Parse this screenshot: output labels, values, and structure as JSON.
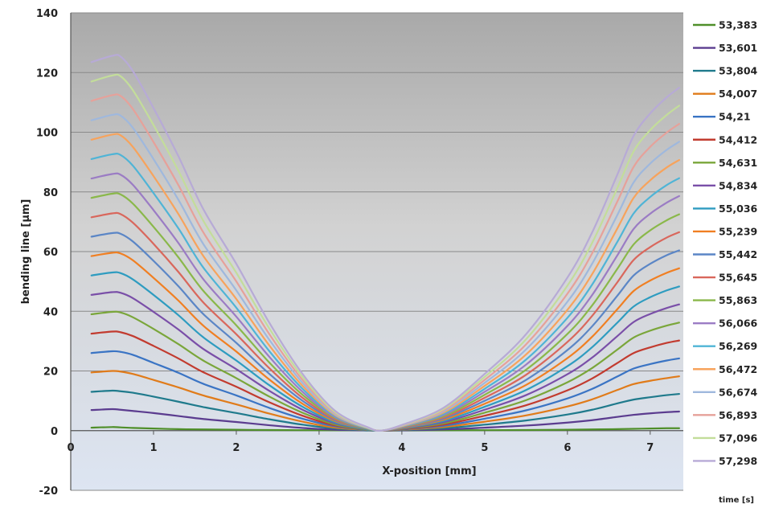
{
  "chart_data": {
    "type": "line",
    "xlabel": "X-position [mm]",
    "ylabel": "bending line [µm]",
    "legend_title": "time [s]",
    "legend_position": "right",
    "xlim": [
      0,
      7.4
    ],
    "ylim": [
      -20,
      140
    ],
    "x_ticks": [
      "0",
      "1",
      "2",
      "3",
      "4",
      "5",
      "6",
      "7"
    ],
    "y_ticks": [
      "-20",
      "0",
      "20",
      "40",
      "60",
      "80",
      "100",
      "120",
      "140"
    ],
    "grid": "horizontal",
    "background": "vertical gradient from dark gray (top) to light blue (bottom)",
    "profile_note": "Each curve is flat near the left end, descends to 0 at X≈3.75 mm, then rises toward the right end.",
    "x": [
      0.25,
      0.5,
      0.6,
      0.75,
      1.0,
      1.3,
      1.6,
      2.0,
      2.4,
      2.8,
      3.2,
      3.6,
      3.75,
      4.0,
      4.5,
      5.0,
      5.5,
      6.0,
      6.3,
      6.6,
      6.8,
      7.0,
      7.2,
      7.35
    ],
    "series": [
      {
        "name": "53,383",
        "color": "#4f8f2a",
        "values": [
          1.0,
          1.2,
          1.1,
          0.9,
          0.7,
          0.5,
          0.4,
          0.3,
          0.2,
          0.15,
          0.1,
          0.05,
          0,
          0.05,
          0.1,
          0.15,
          0.2,
          0.3,
          0.4,
          0.5,
          0.6,
          0.7,
          0.8,
          0.8
        ]
      },
      {
        "name": "53,601",
        "color": "#5b3c8f",
        "values": [
          6.9,
          7.2,
          7.0,
          6.6,
          5.9,
          4.9,
          3.9,
          2.9,
          1.8,
          0.9,
          0.3,
          0.05,
          0,
          0.1,
          0.4,
          1.0,
          1.7,
          2.7,
          3.5,
          4.6,
          5.3,
          5.8,
          6.2,
          6.4
        ]
      },
      {
        "name": "53,804",
        "color": "#1f7a8c",
        "values": [
          13.0,
          13.4,
          13.2,
          12.7,
          11.4,
          9.7,
          7.9,
          5.9,
          3.8,
          2.0,
          0.7,
          0.1,
          0,
          0.2,
          0.8,
          2.0,
          3.4,
          5.4,
          7.0,
          9.1,
          10.4,
          11.2,
          11.9,
          12.3
        ]
      },
      {
        "name": "54,007",
        "color": "#e07b1a",
        "values": [
          19.5,
          20.0,
          19.8,
          19.0,
          17.0,
          14.5,
          11.8,
          8.8,
          5.7,
          3.0,
          1.0,
          0.2,
          0,
          0.3,
          1.2,
          3.0,
          5.1,
          8.1,
          10.5,
          13.6,
          15.6,
          16.7,
          17.6,
          18.2
        ]
      },
      {
        "name": "54,21",
        "color": "#3a74c4",
        "values": [
          26.0,
          26.6,
          26.4,
          25.4,
          22.7,
          19.4,
          15.7,
          11.8,
          7.6,
          4.0,
          1.4,
          0.2,
          0,
          0.4,
          1.6,
          4.0,
          6.8,
          10.8,
          14.0,
          18.1,
          20.8,
          22.3,
          23.5,
          24.2
        ]
      },
      {
        "name": "54,412",
        "color": "#c23b2f",
        "values": [
          32.5,
          33.2,
          33.0,
          31.7,
          28.4,
          24.2,
          19.6,
          14.7,
          9.5,
          5.0,
          1.7,
          0.3,
          0,
          0.5,
          2.0,
          5.0,
          8.5,
          13.5,
          17.5,
          22.6,
          26.0,
          27.9,
          29.4,
          30.2
        ]
      },
      {
        "name": "54,631",
        "color": "#7aa63a",
        "values": [
          39.0,
          39.8,
          39.6,
          38.0,
          34.1,
          29.0,
          23.5,
          17.6,
          11.4,
          6.0,
          2.0,
          0.3,
          0,
          0.6,
          2.4,
          6.0,
          10.2,
          16.2,
          21.0,
          27.1,
          31.2,
          33.5,
          35.2,
          36.2
        ]
      },
      {
        "name": "54,834",
        "color": "#7a4fa8",
        "values": [
          45.5,
          46.4,
          46.2,
          44.4,
          39.8,
          33.9,
          27.4,
          20.6,
          13.3,
          7.0,
          2.4,
          0.4,
          0,
          0.7,
          2.8,
          7.0,
          11.9,
          18.9,
          24.5,
          31.6,
          36.4,
          39.1,
          41.1,
          42.3
        ]
      },
      {
        "name": "55,036",
        "color": "#2e9cc0",
        "values": [
          52.0,
          53.0,
          52.8,
          50.7,
          45.5,
          38.7,
          31.3,
          23.5,
          15.2,
          8.0,
          2.7,
          0.4,
          0,
          0.8,
          3.2,
          8.0,
          13.6,
          21.6,
          28.0,
          36.1,
          41.6,
          44.7,
          47.0,
          48.3
        ]
      },
      {
        "name": "55,239",
        "color": "#f07f22",
        "values": [
          58.5,
          59.6,
          59.4,
          57.1,
          51.2,
          43.6,
          35.2,
          26.5,
          17.1,
          9.0,
          3.1,
          0.5,
          0,
          0.9,
          3.6,
          9.0,
          15.3,
          24.3,
          31.5,
          40.6,
          46.8,
          50.3,
          52.9,
          54.4
        ]
      },
      {
        "name": "55,442",
        "color": "#5b86c6",
        "values": [
          65.0,
          66.2,
          66.0,
          63.4,
          56.9,
          48.4,
          39.1,
          29.4,
          19.0,
          10.0,
          3.4,
          0.5,
          0,
          1.0,
          4.0,
          10.0,
          17.0,
          27.0,
          35.0,
          45.1,
          52.0,
          55.9,
          58.8,
          60.4
        ]
      },
      {
        "name": "55,645",
        "color": "#d9675c",
        "values": [
          71.5,
          72.8,
          72.6,
          69.7,
          62.6,
          53.2,
          43.0,
          32.3,
          20.9,
          11.0,
          3.7,
          0.6,
          0,
          1.1,
          4.4,
          11.0,
          18.7,
          29.7,
          38.5,
          49.6,
          57.2,
          61.5,
          64.7,
          66.5
        ]
      },
      {
        "name": "55,863",
        "color": "#8ab84a",
        "values": [
          78.0,
          79.4,
          79.2,
          76.1,
          68.3,
          58.1,
          46.9,
          35.3,
          22.8,
          12.0,
          4.1,
          0.6,
          0,
          1.2,
          4.8,
          12.0,
          20.4,
          32.4,
          42.0,
          54.1,
          62.4,
          67.1,
          70.5,
          72.5
        ]
      },
      {
        "name": "56,066",
        "color": "#9b7cc4",
        "values": [
          84.5,
          86.0,
          85.8,
          82.4,
          73.9,
          62.9,
          50.8,
          38.2,
          24.7,
          13.0,
          4.4,
          0.7,
          0,
          1.3,
          5.2,
          13.0,
          22.1,
          35.1,
          45.5,
          58.6,
          67.6,
          72.7,
          76.4,
          78.6
        ]
      },
      {
        "name": "56,269",
        "color": "#4fb4d6",
        "values": [
          91.0,
          92.6,
          92.4,
          88.8,
          79.6,
          67.8,
          54.7,
          41.2,
          26.6,
          14.0,
          4.8,
          0.7,
          0,
          1.4,
          5.6,
          14.0,
          23.8,
          37.8,
          49.0,
          63.1,
          72.8,
          78.3,
          82.3,
          84.6
        ]
      },
      {
        "name": "56,472",
        "color": "#f7a35c",
        "values": [
          97.5,
          99.2,
          99.0,
          95.1,
          85.3,
          72.6,
          58.6,
          44.1,
          28.5,
          15.0,
          5.1,
          0.8,
          0,
          1.5,
          6.0,
          15.0,
          25.5,
          40.5,
          52.5,
          67.6,
          78.0,
          83.9,
          88.2,
          90.7
        ]
      },
      {
        "name": "56,674",
        "color": "#9fb8dd",
        "values": [
          104.0,
          105.8,
          105.6,
          101.5,
          91.0,
          77.4,
          62.6,
          47.0,
          30.4,
          16.0,
          5.4,
          0.8,
          0,
          1.6,
          6.4,
          16.0,
          27.2,
          43.2,
          56.0,
          72.1,
          83.2,
          89.5,
          94.1,
          96.8
        ]
      },
      {
        "name": "56,893",
        "color": "#e6a19a",
        "values": [
          110.5,
          112.4,
          112.2,
          107.8,
          96.7,
          82.3,
          66.5,
          50.0,
          32.3,
          17.0,
          5.8,
          0.9,
          0,
          1.7,
          6.8,
          17.0,
          28.9,
          45.9,
          59.5,
          76.6,
          88.4,
          95.1,
          99.9,
          102.8
        ]
      },
      {
        "name": "57,096",
        "color": "#c3dd9a",
        "values": [
          117.0,
          119.0,
          118.8,
          114.1,
          102.4,
          87.1,
          70.4,
          52.9,
          34.2,
          18.0,
          6.1,
          0.9,
          0,
          1.8,
          7.2,
          18.0,
          30.6,
          48.6,
          63.0,
          81.1,
          93.6,
          100.7,
          105.8,
          108.9
        ]
      },
      {
        "name": "57,298",
        "color": "#b7aad6",
        "values": [
          123.5,
          125.6,
          125.4,
          120.5,
          108.1,
          92.0,
          74.3,
          55.9,
          36.1,
          19.0,
          6.5,
          1.0,
          0,
          1.9,
          7.6,
          19.0,
          32.3,
          51.3,
          66.5,
          85.6,
          98.8,
          106.3,
          111.7,
          114.9
        ]
      }
    ]
  }
}
